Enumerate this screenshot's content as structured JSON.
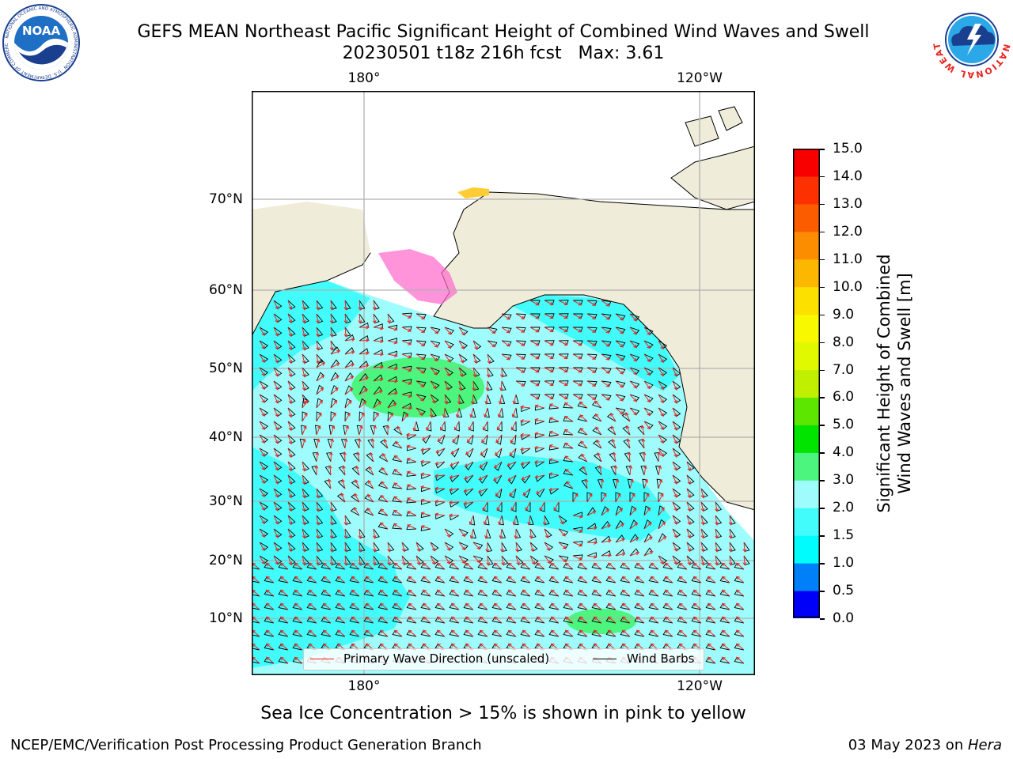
{
  "header": {
    "title_line1": "GEFS MEAN Northeast Pacific Significant Height of Combined Wind Waves and Swell",
    "title_line2": "20230501 t18z 216h fcst   Max: 3.61"
  },
  "logos": {
    "noaa_text": "NOAA",
    "noaa_ring_text": "NATIONAL OCEANIC AND ATMOSPHERIC ADMINISTRATION · U.S. DEPARTMENT OF COMMERCE",
    "nws_ring_text": "NATIONAL WEATHER SERVICE"
  },
  "map": {
    "lon_labels_top": [
      "180°",
      "120°W"
    ],
    "lon_labels_bottom": [
      "180°",
      "120°W"
    ],
    "lat_labels": [
      "70°N",
      "60°N",
      "50°N",
      "40°N",
      "30°N",
      "20°N",
      "10°N"
    ],
    "colors": {
      "land": "#efedd9",
      "ocean_base": "#9ffcfc",
      "ocean_low": "#42fcfc",
      "ocean_high": "#4cf57e",
      "wave_arrow": "#e8231e",
      "wind_barb": "#000000",
      "grid": "#b0b0b0"
    },
    "legend": {
      "wave_label": "Primary Wave Direction (unscaled)",
      "wind_label": "Wind Barbs"
    }
  },
  "colorbar": {
    "title_line1": "Significant Height of Combined",
    "title_line2": "Wind Waves and Swell [m]",
    "tick_labels": [
      "0.0",
      "0.5",
      "1.0",
      "1.5",
      "2.0",
      "3.0",
      "4.0",
      "5.0",
      "6.0",
      "7.0",
      "8.0",
      "9.0",
      "10.0",
      "11.0",
      "12.0",
      "13.0",
      "14.0",
      "15.0"
    ],
    "colors": [
      "#0000f8",
      "#0080f8",
      "#00fcfc",
      "#42fcfc",
      "#9ffcfc",
      "#4cf57e",
      "#00e400",
      "#5ce600",
      "#c0f000",
      "#e0f800",
      "#f8f800",
      "#fce000",
      "#fcb800",
      "#fc8c00",
      "#fc5c00",
      "#fc3000",
      "#f80000"
    ]
  },
  "notes": {
    "sea_ice": "Sea Ice Concentration > 15% is shown in pink to yellow"
  },
  "footer": {
    "left": "NCEP/EMC/Verification Post Processing Product Generation Branch",
    "right_date": "03 May 2023 on ",
    "right_machine": "Hera"
  }
}
